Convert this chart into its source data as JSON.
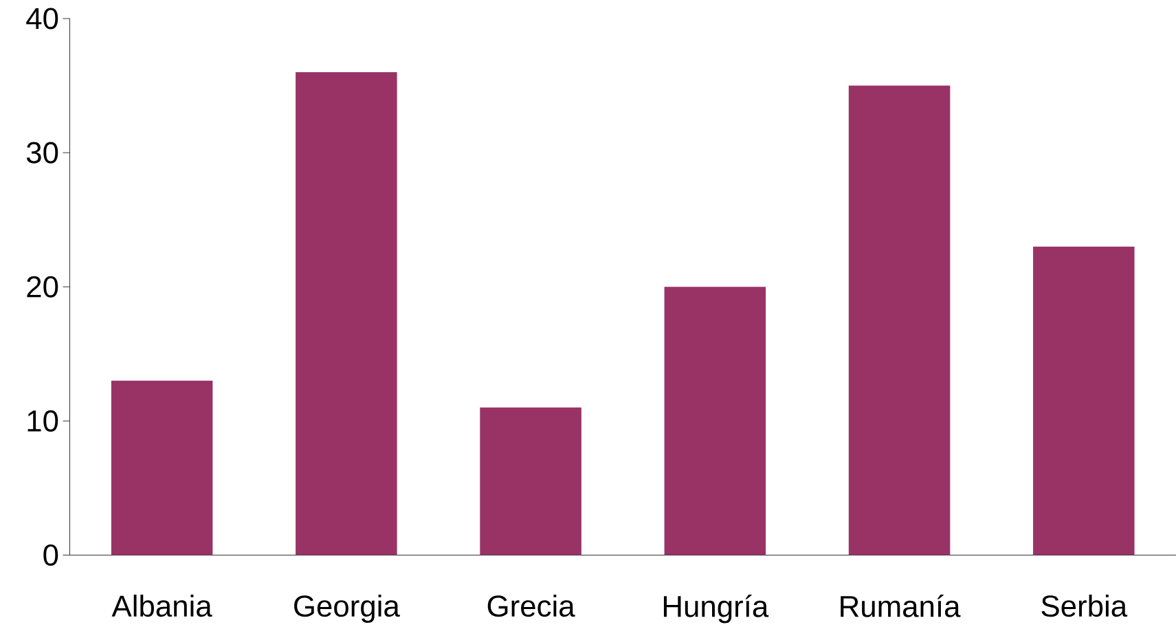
{
  "chart_data": {
    "type": "bar",
    "categories": [
      "Albania",
      "Georgia",
      "Grecia",
      "Hungría",
      "Rumanía",
      "Serbia"
    ],
    "values": [
      13,
      36,
      11,
      20,
      35,
      23
    ],
    "color": "#993366",
    "ylim": [
      0,
      40
    ],
    "yticks": [
      0,
      10,
      20,
      30,
      40
    ],
    "grid": false
  }
}
